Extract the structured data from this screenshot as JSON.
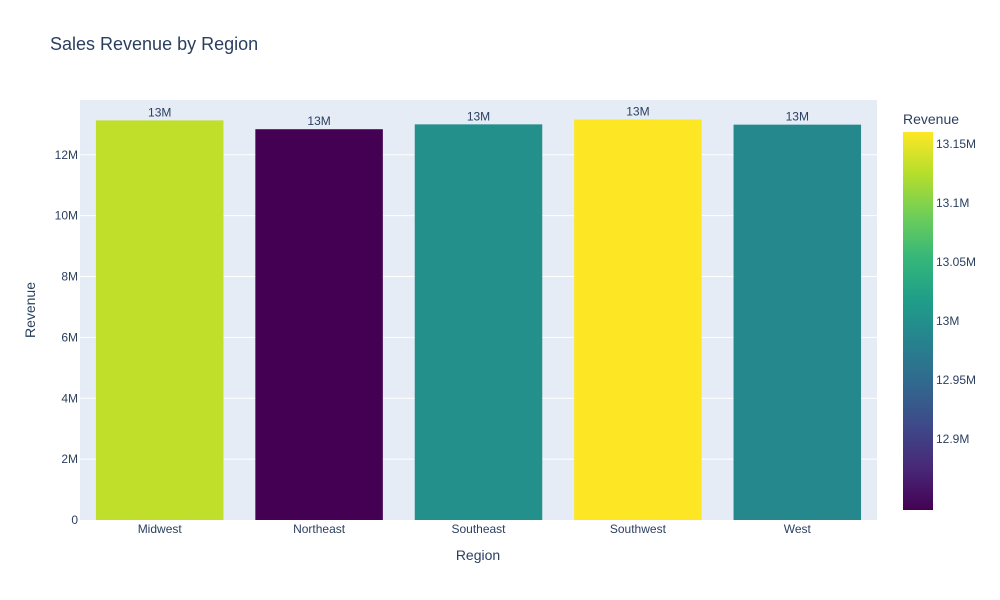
{
  "chart_data": {
    "type": "bar",
    "title": "Sales Revenue by Region",
    "xlabel": "Region",
    "ylabel": "Revenue",
    "categories": [
      "Midwest",
      "Northeast",
      "Southeast",
      "Southwest",
      "West"
    ],
    "values": [
      13130000,
      12840000,
      13000000,
      13160000,
      12990000
    ],
    "bar_labels": [
      "13M",
      "13M",
      "13M",
      "13M",
      "13M"
    ],
    "ylim": [
      0,
      13800000
    ],
    "yticks": [
      0,
      2000000,
      4000000,
      6000000,
      8000000,
      10000000,
      12000000
    ],
    "ytick_labels": [
      "0",
      "2M",
      "4M",
      "6M",
      "8M",
      "10M",
      "12M"
    ],
    "grid": true,
    "colorscale": "viridis",
    "colorbar": {
      "title": "Revenue",
      "range": [
        12840000,
        13160000
      ],
      "ticks": [
        12900000,
        12950000,
        13000000,
        13050000,
        13100000,
        13150000
      ],
      "tick_labels": [
        "12.9M",
        "12.95M",
        "13M",
        "13.05M",
        "13.1M",
        "13.15M"
      ]
    },
    "colors": {
      "plot_bg": "#e5ecf6",
      "text": "#2a3f5f",
      "grid": "#ffffff"
    }
  }
}
